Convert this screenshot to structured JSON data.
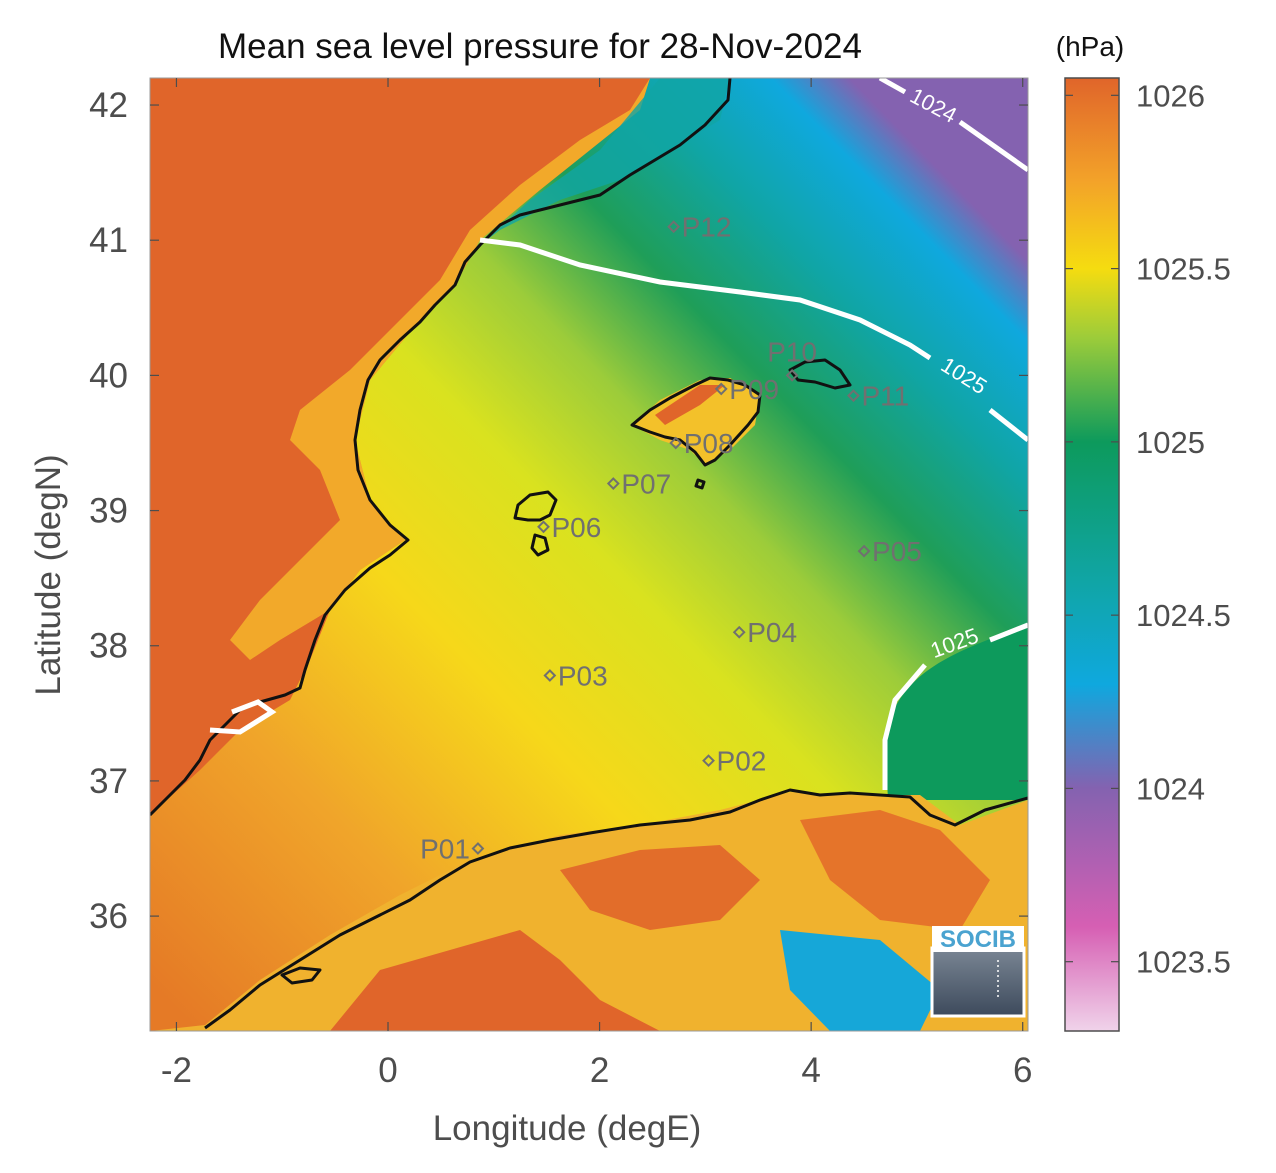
{
  "chart_data": {
    "type": "heatmap",
    "title": "Mean sea level pressure for 28-Nov-2024",
    "xlabel": "Longitude (degE)",
    "ylabel": "Latitude (degN)",
    "xlim": [
      -2.25,
      6.05
    ],
    "ylim": [
      35.15,
      42.2
    ],
    "x_ticks": [
      -2,
      0,
      2,
      4,
      6
    ],
    "y_ticks": [
      36,
      37,
      38,
      39,
      40,
      41,
      42
    ],
    "colorbar": {
      "unit": "(hPa)",
      "range": [
        1023.3,
        1026.05
      ],
      "ticks": [
        1023.5,
        1024,
        1024.5,
        1025,
        1025.5,
        1026
      ],
      "stops": [
        {
          "value": 1023.3,
          "color": "#f0d3ea"
        },
        {
          "value": 1023.6,
          "color": "#d65fb3"
        },
        {
          "value": 1024.0,
          "color": "#8462b0"
        },
        {
          "value": 1024.3,
          "color": "#0fa8de"
        },
        {
          "value": 1024.6,
          "color": "#10a5a5"
        },
        {
          "value": 1025.0,
          "color": "#0d9a5c"
        },
        {
          "value": 1025.3,
          "color": "#9ccc3a"
        },
        {
          "value": 1025.5,
          "color": "#f5dc10"
        },
        {
          "value": 1025.75,
          "color": "#f3a329"
        },
        {
          "value": 1026.05,
          "color": "#e0652a"
        }
      ]
    },
    "contours": [
      {
        "label": "1024",
        "level": 1024
      },
      {
        "label": "1025",
        "level": 1025
      },
      {
        "label": "1025",
        "level": 1025
      }
    ],
    "points": [
      {
        "name": "P01",
        "lon": 0.85,
        "lat": 36.5
      },
      {
        "name": "P02",
        "lon": 3.03,
        "lat": 37.15
      },
      {
        "name": "P03",
        "lon": 1.53,
        "lat": 37.78
      },
      {
        "name": "P04",
        "lon": 3.32,
        "lat": 38.1
      },
      {
        "name": "P05",
        "lon": 4.5,
        "lat": 38.7
      },
      {
        "name": "P06",
        "lon": 1.47,
        "lat": 38.88
      },
      {
        "name": "P07",
        "lon": 2.13,
        "lat": 39.2
      },
      {
        "name": "P08",
        "lon": 2.72,
        "lat": 39.5
      },
      {
        "name": "P09",
        "lon": 3.15,
        "lat": 39.9
      },
      {
        "name": "P10",
        "lon": 3.82,
        "lat": 40.0
      },
      {
        "name": "P11",
        "lon": 4.4,
        "lat": 39.85
      },
      {
        "name": "P12",
        "lon": 2.7,
        "lat": 41.1
      }
    ]
  },
  "logo": {
    "text": "SOCIB"
  }
}
